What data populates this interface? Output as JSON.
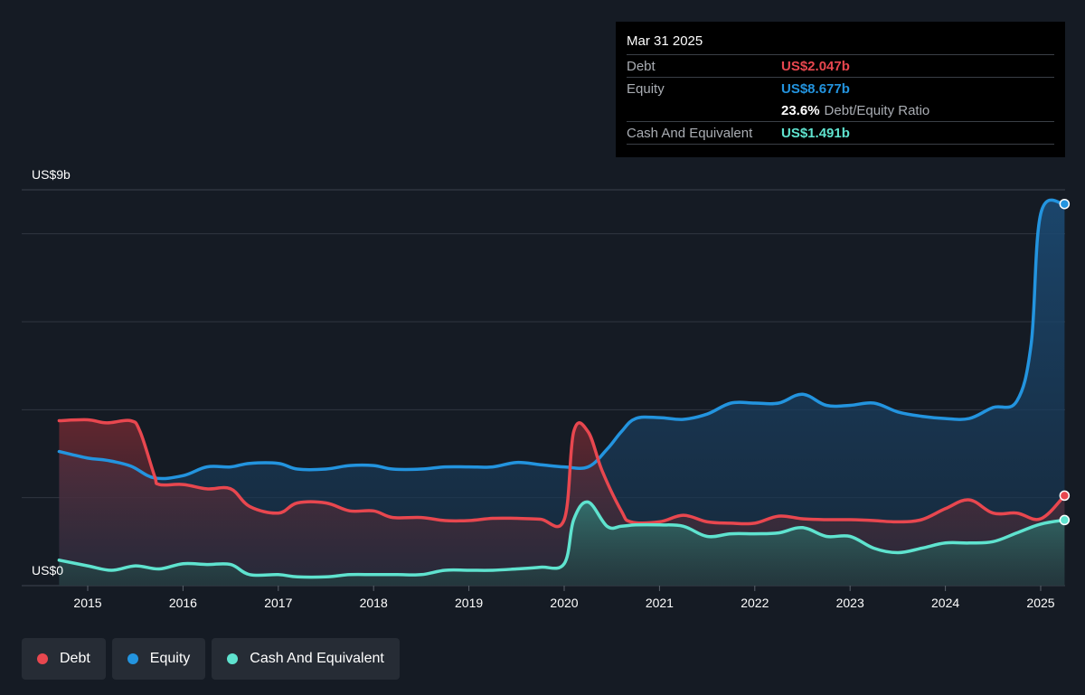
{
  "tooltip": {
    "date": "Mar 31 2025",
    "debt_label": "Debt",
    "debt_value": "US$2.047b",
    "equity_label": "Equity",
    "equity_value": "US$8.677b",
    "ratio_value": "23.6%",
    "ratio_label": "Debt/Equity Ratio",
    "cash_label": "Cash And Equivalent",
    "cash_value": "US$1.491b"
  },
  "legend": [
    {
      "label": "Debt",
      "color": "#e8474f"
    },
    {
      "label": "Equity",
      "color": "#2394df"
    },
    {
      "label": "Cash And Equivalent",
      "color": "#5fe3cf"
    }
  ],
  "colors": {
    "debt": "#e8474f",
    "equity": "#2394df",
    "cash": "#5fe3cf",
    "background": "#151b24"
  },
  "chart_data": {
    "type": "area",
    "y_top_label": "US$9b",
    "y_bottom_label": "US$0",
    "ylim": [
      0,
      9
    ],
    "xlim": [
      2014.7,
      2025.25
    ],
    "x_ticks": [
      "2015",
      "2016",
      "2017",
      "2018",
      "2019",
      "2020",
      "2021",
      "2022",
      "2023",
      "2024",
      "2025"
    ],
    "grid": true,
    "series": [
      {
        "name": "Debt",
        "color": "#e8474f",
        "x": [
          2014.7,
          2015.0,
          2015.2,
          2015.45,
          2015.55,
          2015.7,
          2015.75,
          2016.0,
          2016.25,
          2016.5,
          2016.7,
          2017.0,
          2017.2,
          2017.5,
          2017.75,
          2018.0,
          2018.2,
          2018.5,
          2018.75,
          2019.0,
          2019.25,
          2019.5,
          2019.75,
          2020.0,
          2020.1,
          2020.25,
          2020.4,
          2020.6,
          2020.7,
          2021.0,
          2021.25,
          2021.5,
          2021.75,
          2022.0,
          2022.25,
          2022.5,
          2022.75,
          2023.0,
          2023.25,
          2023.5,
          2023.75,
          2024.0,
          2024.25,
          2024.5,
          2024.75,
          2025.0,
          2025.25
        ],
        "values": [
          3.75,
          3.77,
          3.7,
          3.75,
          3.5,
          2.5,
          2.3,
          2.3,
          2.2,
          2.2,
          1.8,
          1.65,
          1.88,
          1.88,
          1.7,
          1.7,
          1.55,
          1.55,
          1.48,
          1.48,
          1.53,
          1.53,
          1.51,
          1.5,
          3.5,
          3.5,
          2.6,
          1.7,
          1.45,
          1.45,
          1.6,
          1.45,
          1.42,
          1.42,
          1.58,
          1.52,
          1.5,
          1.5,
          1.48,
          1.45,
          1.5,
          1.75,
          1.95,
          1.65,
          1.65,
          1.52,
          2.047
        ]
      },
      {
        "name": "Equity",
        "color": "#2394df",
        "x": [
          2014.7,
          2015.0,
          2015.2,
          2015.45,
          2015.7,
          2016.0,
          2016.25,
          2016.5,
          2016.7,
          2017.0,
          2017.2,
          2017.5,
          2017.75,
          2018.0,
          2018.2,
          2018.5,
          2018.75,
          2019.0,
          2019.25,
          2019.5,
          2019.75,
          2020.0,
          2020.25,
          2020.45,
          2020.6,
          2020.75,
          2021.0,
          2021.25,
          2021.5,
          2021.75,
          2022.0,
          2022.25,
          2022.5,
          2022.75,
          2023.0,
          2023.25,
          2023.5,
          2023.75,
          2024.0,
          2024.25,
          2024.5,
          2024.75,
          2024.9,
          2025.0,
          2025.25
        ],
        "values": [
          3.05,
          2.9,
          2.85,
          2.72,
          2.45,
          2.5,
          2.7,
          2.7,
          2.78,
          2.78,
          2.65,
          2.65,
          2.73,
          2.73,
          2.65,
          2.65,
          2.7,
          2.7,
          2.7,
          2.8,
          2.75,
          2.7,
          2.7,
          3.1,
          3.5,
          3.8,
          3.82,
          3.78,
          3.9,
          4.15,
          4.15,
          4.15,
          4.35,
          4.1,
          4.1,
          4.15,
          3.95,
          3.85,
          3.8,
          3.8,
          4.05,
          4.2,
          5.5,
          8.45,
          8.677
        ]
      },
      {
        "name": "Cash And Equivalent",
        "color": "#5fe3cf",
        "x": [
          2014.7,
          2015.0,
          2015.25,
          2015.5,
          2015.75,
          2016.0,
          2016.25,
          2016.5,
          2016.7,
          2017.0,
          2017.2,
          2017.5,
          2017.75,
          2018.0,
          2018.25,
          2018.5,
          2018.75,
          2019.0,
          2019.25,
          2019.5,
          2019.75,
          2020.0,
          2020.1,
          2020.25,
          2020.45,
          2020.6,
          2020.75,
          2021.0,
          2021.25,
          2021.5,
          2021.75,
          2022.0,
          2022.25,
          2022.5,
          2022.75,
          2023.0,
          2023.25,
          2023.5,
          2023.75,
          2024.0,
          2024.25,
          2024.5,
          2024.75,
          2025.0,
          2025.25
        ],
        "values": [
          0.58,
          0.45,
          0.35,
          0.45,
          0.38,
          0.5,
          0.48,
          0.48,
          0.25,
          0.25,
          0.2,
          0.2,
          0.25,
          0.25,
          0.25,
          0.25,
          0.35,
          0.35,
          0.35,
          0.38,
          0.42,
          0.5,
          1.5,
          1.9,
          1.35,
          1.35,
          1.38,
          1.38,
          1.35,
          1.12,
          1.18,
          1.18,
          1.2,
          1.32,
          1.12,
          1.12,
          0.85,
          0.75,
          0.85,
          0.97,
          0.97,
          1.0,
          1.2,
          1.4,
          1.491
        ]
      }
    ]
  }
}
